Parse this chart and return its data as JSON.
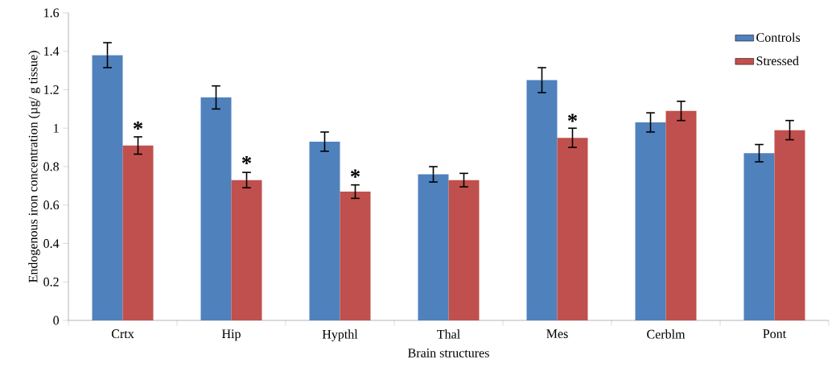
{
  "chart_data": {
    "type": "bar",
    "xlabel": "Brain structures",
    "ylabel": "Endogenous iron concentration (µg/ g tissue)",
    "categories": [
      "Crtx",
      "Hip",
      "Hypthl",
      "Thal",
      "Mes",
      "Cerblm",
      "Pont"
    ],
    "series": [
      {
        "name": "Controls",
        "color": "#4f81bd",
        "values": [
          1.38,
          1.16,
          0.93,
          0.76,
          1.25,
          1.03,
          0.87
        ],
        "errors": [
          0.065,
          0.06,
          0.05,
          0.04,
          0.065,
          0.05,
          0.045
        ]
      },
      {
        "name": "Stressed",
        "color": "#c0504d",
        "values": [
          0.91,
          0.73,
          0.67,
          0.73,
          0.95,
          1.09,
          0.99
        ],
        "errors": [
          0.045,
          0.04,
          0.035,
          0.035,
          0.05,
          0.05,
          0.05
        ]
      }
    ],
    "annotations": [
      {
        "text": "*",
        "x": "Crtx",
        "y": 0.96
      },
      {
        "text": "*",
        "x": "Hip",
        "y": 0.78
      },
      {
        "text": "*",
        "x": "Hypthl",
        "y": 0.71
      },
      {
        "text": "*",
        "x": "Mes",
        "y": 1.0
      }
    ],
    "ylim": [
      0,
      1.6
    ],
    "yticks": [
      0,
      0.2,
      0.4,
      0.6,
      0.8,
      1,
      1.2,
      1.4,
      1.6
    ],
    "grid": false,
    "legend": "top right"
  }
}
